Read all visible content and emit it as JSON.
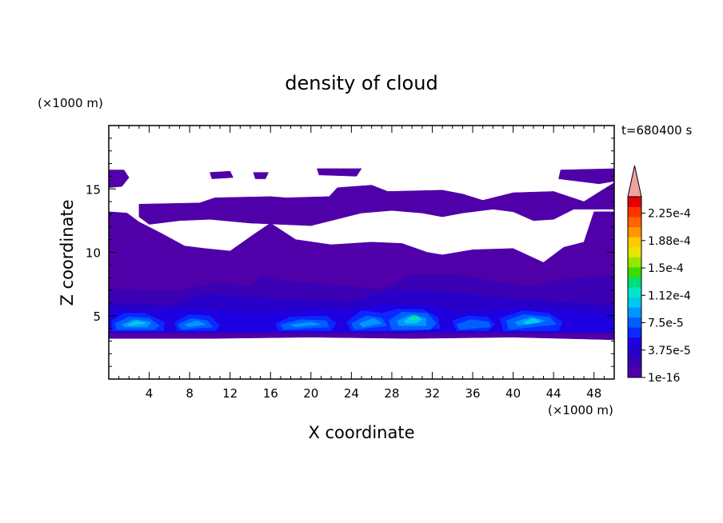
{
  "chart_data": {
    "type": "heatmap",
    "title": "density of cloud",
    "time_label": "t=680400 s",
    "xlabel": "X coordinate",
    "ylabel": "Z coordinate",
    "x_unit": "(×1000 m)",
    "y_unit": "(×1000 m)",
    "xlim": [
      0,
      50
    ],
    "ylim": [
      0,
      20
    ],
    "x_ticks": [
      4,
      8,
      12,
      16,
      20,
      24,
      28,
      32,
      36,
      40,
      44,
      48
    ],
    "y_ticks": [
      5,
      10,
      15
    ],
    "colorbar": {
      "labels": [
        "1e-16",
        "3.75e-5",
        "7.5e-5",
        "1.12e-4",
        "1.5e-4",
        "1.88e-4",
        "2.25e-4"
      ],
      "levels": [
        "#5000a8",
        "#3c00b4",
        "#2800c8",
        "#1e00e0",
        "#0a28ff",
        "#0060ff",
        "#0096ff",
        "#00c8f0",
        "#00e6c8",
        "#00dc78",
        "#3cdc00",
        "#96e600",
        "#e6e600",
        "#ffc800",
        "#ff9600",
        "#ff6400",
        "#ff3200",
        "#e60000"
      ],
      "extend_color": "#f2a0a0"
    },
    "regions": [
      {
        "level": 0,
        "points": [
          [
            0,
            16.5
          ],
          [
            1.5,
            16.5
          ],
          [
            2,
            15.9
          ],
          [
            1.3,
            15.2
          ],
          [
            0,
            15.1
          ]
        ]
      },
      {
        "level": 0,
        "points": [
          [
            10,
            16.3
          ],
          [
            12,
            16.4
          ],
          [
            12.3,
            15.9
          ],
          [
            10.2,
            15.8
          ]
        ]
      },
      {
        "level": 0,
        "points": [
          [
            14.3,
            16.3
          ],
          [
            15.8,
            16.3
          ],
          [
            15.5,
            15.8
          ],
          [
            14.5,
            15.8
          ]
        ]
      },
      {
        "level": 0,
        "points": [
          [
            20.6,
            16.6
          ],
          [
            25,
            16.6
          ],
          [
            24.5,
            16
          ],
          [
            20.8,
            16.1
          ]
        ]
      },
      {
        "level": 0,
        "points": [
          [
            44.7,
            16.5
          ],
          [
            50,
            16.6
          ],
          [
            50,
            15.6
          ],
          [
            48.5,
            15.4
          ],
          [
            44.5,
            15.8
          ]
        ]
      },
      {
        "level": 0,
        "points": [
          [
            3,
            13.8
          ],
          [
            9,
            13.9
          ],
          [
            10.5,
            14.3
          ],
          [
            16,
            14.4
          ],
          [
            17.5,
            14.3
          ],
          [
            21.8,
            14.4
          ],
          [
            22.6,
            15.1
          ],
          [
            26,
            15.3
          ],
          [
            27.6,
            14.8
          ],
          [
            33,
            14.9
          ],
          [
            35,
            14.6
          ],
          [
            37,
            14.1
          ],
          [
            40,
            14.7
          ],
          [
            44,
            14.8
          ],
          [
            47,
            14
          ],
          [
            50,
            15.5
          ],
          [
            50,
            13.4
          ],
          [
            46,
            13.4
          ],
          [
            44,
            12.6
          ],
          [
            42,
            12.5
          ],
          [
            40,
            13.2
          ],
          [
            38,
            13.4
          ],
          [
            35,
            13.1
          ],
          [
            33,
            12.8
          ],
          [
            31,
            13.1
          ],
          [
            28,
            13.3
          ],
          [
            25,
            13.1
          ],
          [
            24,
            12.9
          ],
          [
            22,
            12.5
          ],
          [
            20,
            12.1
          ],
          [
            17,
            12.2
          ],
          [
            14,
            12.3
          ],
          [
            10,
            12.6
          ],
          [
            7,
            12.5
          ],
          [
            4,
            12.2
          ],
          [
            3,
            12.8
          ]
        ]
      },
      {
        "level": 0,
        "points": [
          [
            0,
            13.2
          ],
          [
            1.8,
            13.1
          ],
          [
            3,
            12.4
          ],
          [
            5.2,
            11.5
          ],
          [
            7.5,
            10.5
          ],
          [
            9.5,
            10.3
          ],
          [
            12,
            10.1
          ],
          [
            14.5,
            11.5
          ],
          [
            16,
            12.3
          ],
          [
            18.5,
            11
          ],
          [
            22,
            10.6
          ],
          [
            26,
            10.8
          ],
          [
            29,
            10.7
          ],
          [
            31.5,
            10
          ],
          [
            33,
            9.8
          ],
          [
            36,
            10.2
          ],
          [
            40,
            10.3
          ],
          [
            43,
            9.2
          ],
          [
            45,
            10.4
          ],
          [
            47,
            10.8
          ],
          [
            48,
            13.2
          ],
          [
            50,
            13.2
          ],
          [
            50,
            3.1
          ],
          [
            40,
            3.3
          ],
          [
            30,
            3.2
          ],
          [
            20,
            3.3
          ],
          [
            10,
            3.2
          ],
          [
            0,
            3.2
          ]
        ]
      },
      {
        "level": 1,
        "points": [
          [
            0,
            7.1
          ],
          [
            7,
            7
          ],
          [
            11,
            7.6
          ],
          [
            14,
            7.3
          ],
          [
            15,
            8.2
          ],
          [
            17,
            7.8
          ],
          [
            21,
            7.5
          ],
          [
            27,
            7.1
          ],
          [
            30,
            8.3
          ],
          [
            35,
            8.2
          ],
          [
            38,
            7.7
          ],
          [
            42,
            7.3
          ],
          [
            45,
            7.9
          ],
          [
            50,
            8.2
          ],
          [
            50,
            3.6
          ],
          [
            0,
            3.6
          ]
        ]
      },
      {
        "level": 2,
        "points": [
          [
            0,
            6
          ],
          [
            6,
            5.8
          ],
          [
            9,
            6.7
          ],
          [
            13,
            6.6
          ],
          [
            18,
            6.2
          ],
          [
            24,
            6.1
          ],
          [
            28,
            7.1
          ],
          [
            33,
            6.9
          ],
          [
            38,
            6.5
          ],
          [
            42,
            6.2
          ],
          [
            47,
            6
          ],
          [
            50,
            5.8
          ],
          [
            50,
            4
          ],
          [
            0,
            4
          ]
        ]
      },
      {
        "level": 3,
        "points": [
          [
            0,
            5.5
          ],
          [
            4,
            5.3
          ],
          [
            8,
            5.6
          ],
          [
            11,
            5.4
          ],
          [
            15,
            5.3
          ],
          [
            20,
            5.5
          ],
          [
            24,
            5.4
          ],
          [
            27,
            5.9
          ],
          [
            32,
            5.8
          ],
          [
            35,
            5.2
          ],
          [
            40,
            5.6
          ],
          [
            44,
            5.5
          ],
          [
            48,
            5.3
          ],
          [
            50,
            5
          ],
          [
            50,
            3.7
          ],
          [
            0,
            3.7
          ]
        ]
      },
      {
        "level": 4,
        "points": [
          [
            0.3,
            4.6
          ],
          [
            1.5,
            5.2
          ],
          [
            3.5,
            5.2
          ],
          [
            5.5,
            4.5
          ],
          [
            5.4,
            3.8
          ],
          [
            0.3,
            3.8
          ]
        ]
      },
      {
        "level": 4,
        "points": [
          [
            6.5,
            4.5
          ],
          [
            8,
            5.1
          ],
          [
            10,
            5
          ],
          [
            11,
            4.2
          ],
          [
            10.5,
            3.8
          ],
          [
            6.8,
            3.8
          ]
        ]
      },
      {
        "level": 4,
        "points": [
          [
            16.5,
            4.4
          ],
          [
            18,
            4.9
          ],
          [
            21.5,
            5
          ],
          [
            22.5,
            4.4
          ],
          [
            22,
            3.8
          ],
          [
            16.8,
            3.8
          ]
        ]
      },
      {
        "level": 4,
        "points": [
          [
            23.5,
            4.5
          ],
          [
            25,
            5.4
          ],
          [
            27,
            5.2
          ],
          [
            28.5,
            5.5
          ],
          [
            31,
            5.5
          ],
          [
            32.5,
            4.9
          ],
          [
            32.8,
            4
          ],
          [
            30,
            3.8
          ],
          [
            24,
            3.8
          ]
        ]
      },
      {
        "level": 4,
        "points": [
          [
            34,
            4.6
          ],
          [
            35.5,
            5
          ],
          [
            37.5,
            4.9
          ],
          [
            38.2,
            4.3
          ],
          [
            37.5,
            3.8
          ],
          [
            34.4,
            3.8
          ]
        ]
      },
      {
        "level": 4,
        "points": [
          [
            38.7,
            4.8
          ],
          [
            41,
            5.4
          ],
          [
            43.5,
            5.2
          ],
          [
            44.9,
            4.5
          ],
          [
            44.5,
            3.8
          ],
          [
            39,
            3.8
          ]
        ]
      },
      {
        "level": 5,
        "points": [
          [
            0.6,
            4.4
          ],
          [
            2,
            4.9
          ],
          [
            4,
            4.8
          ],
          [
            5,
            4.2
          ],
          [
            4.5,
            3.9
          ],
          [
            0.8,
            3.9
          ]
        ]
      },
      {
        "level": 5,
        "points": [
          [
            6.8,
            4.3
          ],
          [
            8.2,
            4.8
          ],
          [
            9.8,
            4.6
          ],
          [
            10.3,
            4.1
          ],
          [
            7.2,
            3.9
          ]
        ]
      },
      {
        "level": 5,
        "points": [
          [
            17,
            4.3
          ],
          [
            19,
            4.7
          ],
          [
            21.5,
            4.6
          ],
          [
            21.8,
            4.1
          ],
          [
            17.3,
            3.9
          ]
        ]
      },
      {
        "level": 5,
        "points": [
          [
            24,
            4.4
          ],
          [
            25.5,
            5
          ],
          [
            27,
            4.8
          ],
          [
            27.5,
            4.2
          ],
          [
            24.3,
            3.9
          ]
        ]
      },
      {
        "level": 5,
        "points": [
          [
            27.7,
            4.6
          ],
          [
            29,
            5.3
          ],
          [
            31.5,
            5.2
          ],
          [
            32.4,
            4.4
          ],
          [
            31.8,
            3.9
          ],
          [
            28,
            3.9
          ]
        ]
      },
      {
        "level": 5,
        "points": [
          [
            34.4,
            4.3
          ],
          [
            35.8,
            4.7
          ],
          [
            37.6,
            4.5
          ],
          [
            37.8,
            4.1
          ],
          [
            34.7,
            3.9
          ]
        ]
      },
      {
        "level": 5,
        "points": [
          [
            39.3,
            4.6
          ],
          [
            41,
            5.1
          ],
          [
            43.6,
            4.9
          ],
          [
            44.3,
            4.3
          ],
          [
            39.6,
            3.9
          ]
        ]
      },
      {
        "level": 6,
        "points": [
          [
            1.3,
            4.3
          ],
          [
            2.5,
            4.7
          ],
          [
            4.2,
            4.5
          ],
          [
            3.8,
            4.1
          ],
          [
            1.6,
            4.1
          ]
        ]
      },
      {
        "level": 6,
        "points": [
          [
            7.5,
            4.3
          ],
          [
            8.8,
            4.6
          ],
          [
            9.6,
            4.3
          ],
          [
            7.9,
            4.1
          ]
        ]
      },
      {
        "level": 6,
        "points": [
          [
            18,
            4.3
          ],
          [
            20,
            4.5
          ],
          [
            21,
            4.3
          ],
          [
            18.4,
            4.1
          ]
        ]
      },
      {
        "level": 6,
        "points": [
          [
            24.8,
            4.4
          ],
          [
            26.2,
            4.8
          ],
          [
            27,
            4.4
          ],
          [
            25.1,
            4.1
          ]
        ]
      },
      {
        "level": 6,
        "points": [
          [
            28.5,
            4.6
          ],
          [
            30,
            5.1
          ],
          [
            31.4,
            4.8
          ],
          [
            31.4,
            4.2
          ],
          [
            28.7,
            4.2
          ]
        ]
      },
      {
        "level": 6,
        "points": [
          [
            40.2,
            4.5
          ],
          [
            41.8,
            4.9
          ],
          [
            43.2,
            4.6
          ],
          [
            40.5,
            4.2
          ]
        ]
      },
      {
        "level": 7,
        "points": [
          [
            1.8,
            4.3
          ],
          [
            2.8,
            4.6
          ],
          [
            3.7,
            4.4
          ],
          [
            2.2,
            4.2
          ]
        ]
      },
      {
        "level": 7,
        "points": [
          [
            29.2,
            4.6
          ],
          [
            30.2,
            5
          ],
          [
            31,
            4.7
          ],
          [
            30.4,
            4.4
          ],
          [
            29.4,
            4.4
          ]
        ]
      },
      {
        "level": 7,
        "points": [
          [
            41,
            4.5
          ],
          [
            42,
            4.8
          ],
          [
            42.8,
            4.5
          ],
          [
            41.3,
            4.3
          ]
        ]
      },
      {
        "level": 8,
        "points": [
          [
            29.6,
            4.8
          ],
          [
            30.3,
            5
          ],
          [
            30.8,
            4.8
          ],
          [
            30.1,
            4.65
          ]
        ]
      },
      {
        "level": 9,
        "points": [
          [
            30,
            4.9
          ],
          [
            30.4,
            5.05
          ],
          [
            30.6,
            4.9
          ],
          [
            30.2,
            4.82
          ]
        ]
      }
    ]
  }
}
